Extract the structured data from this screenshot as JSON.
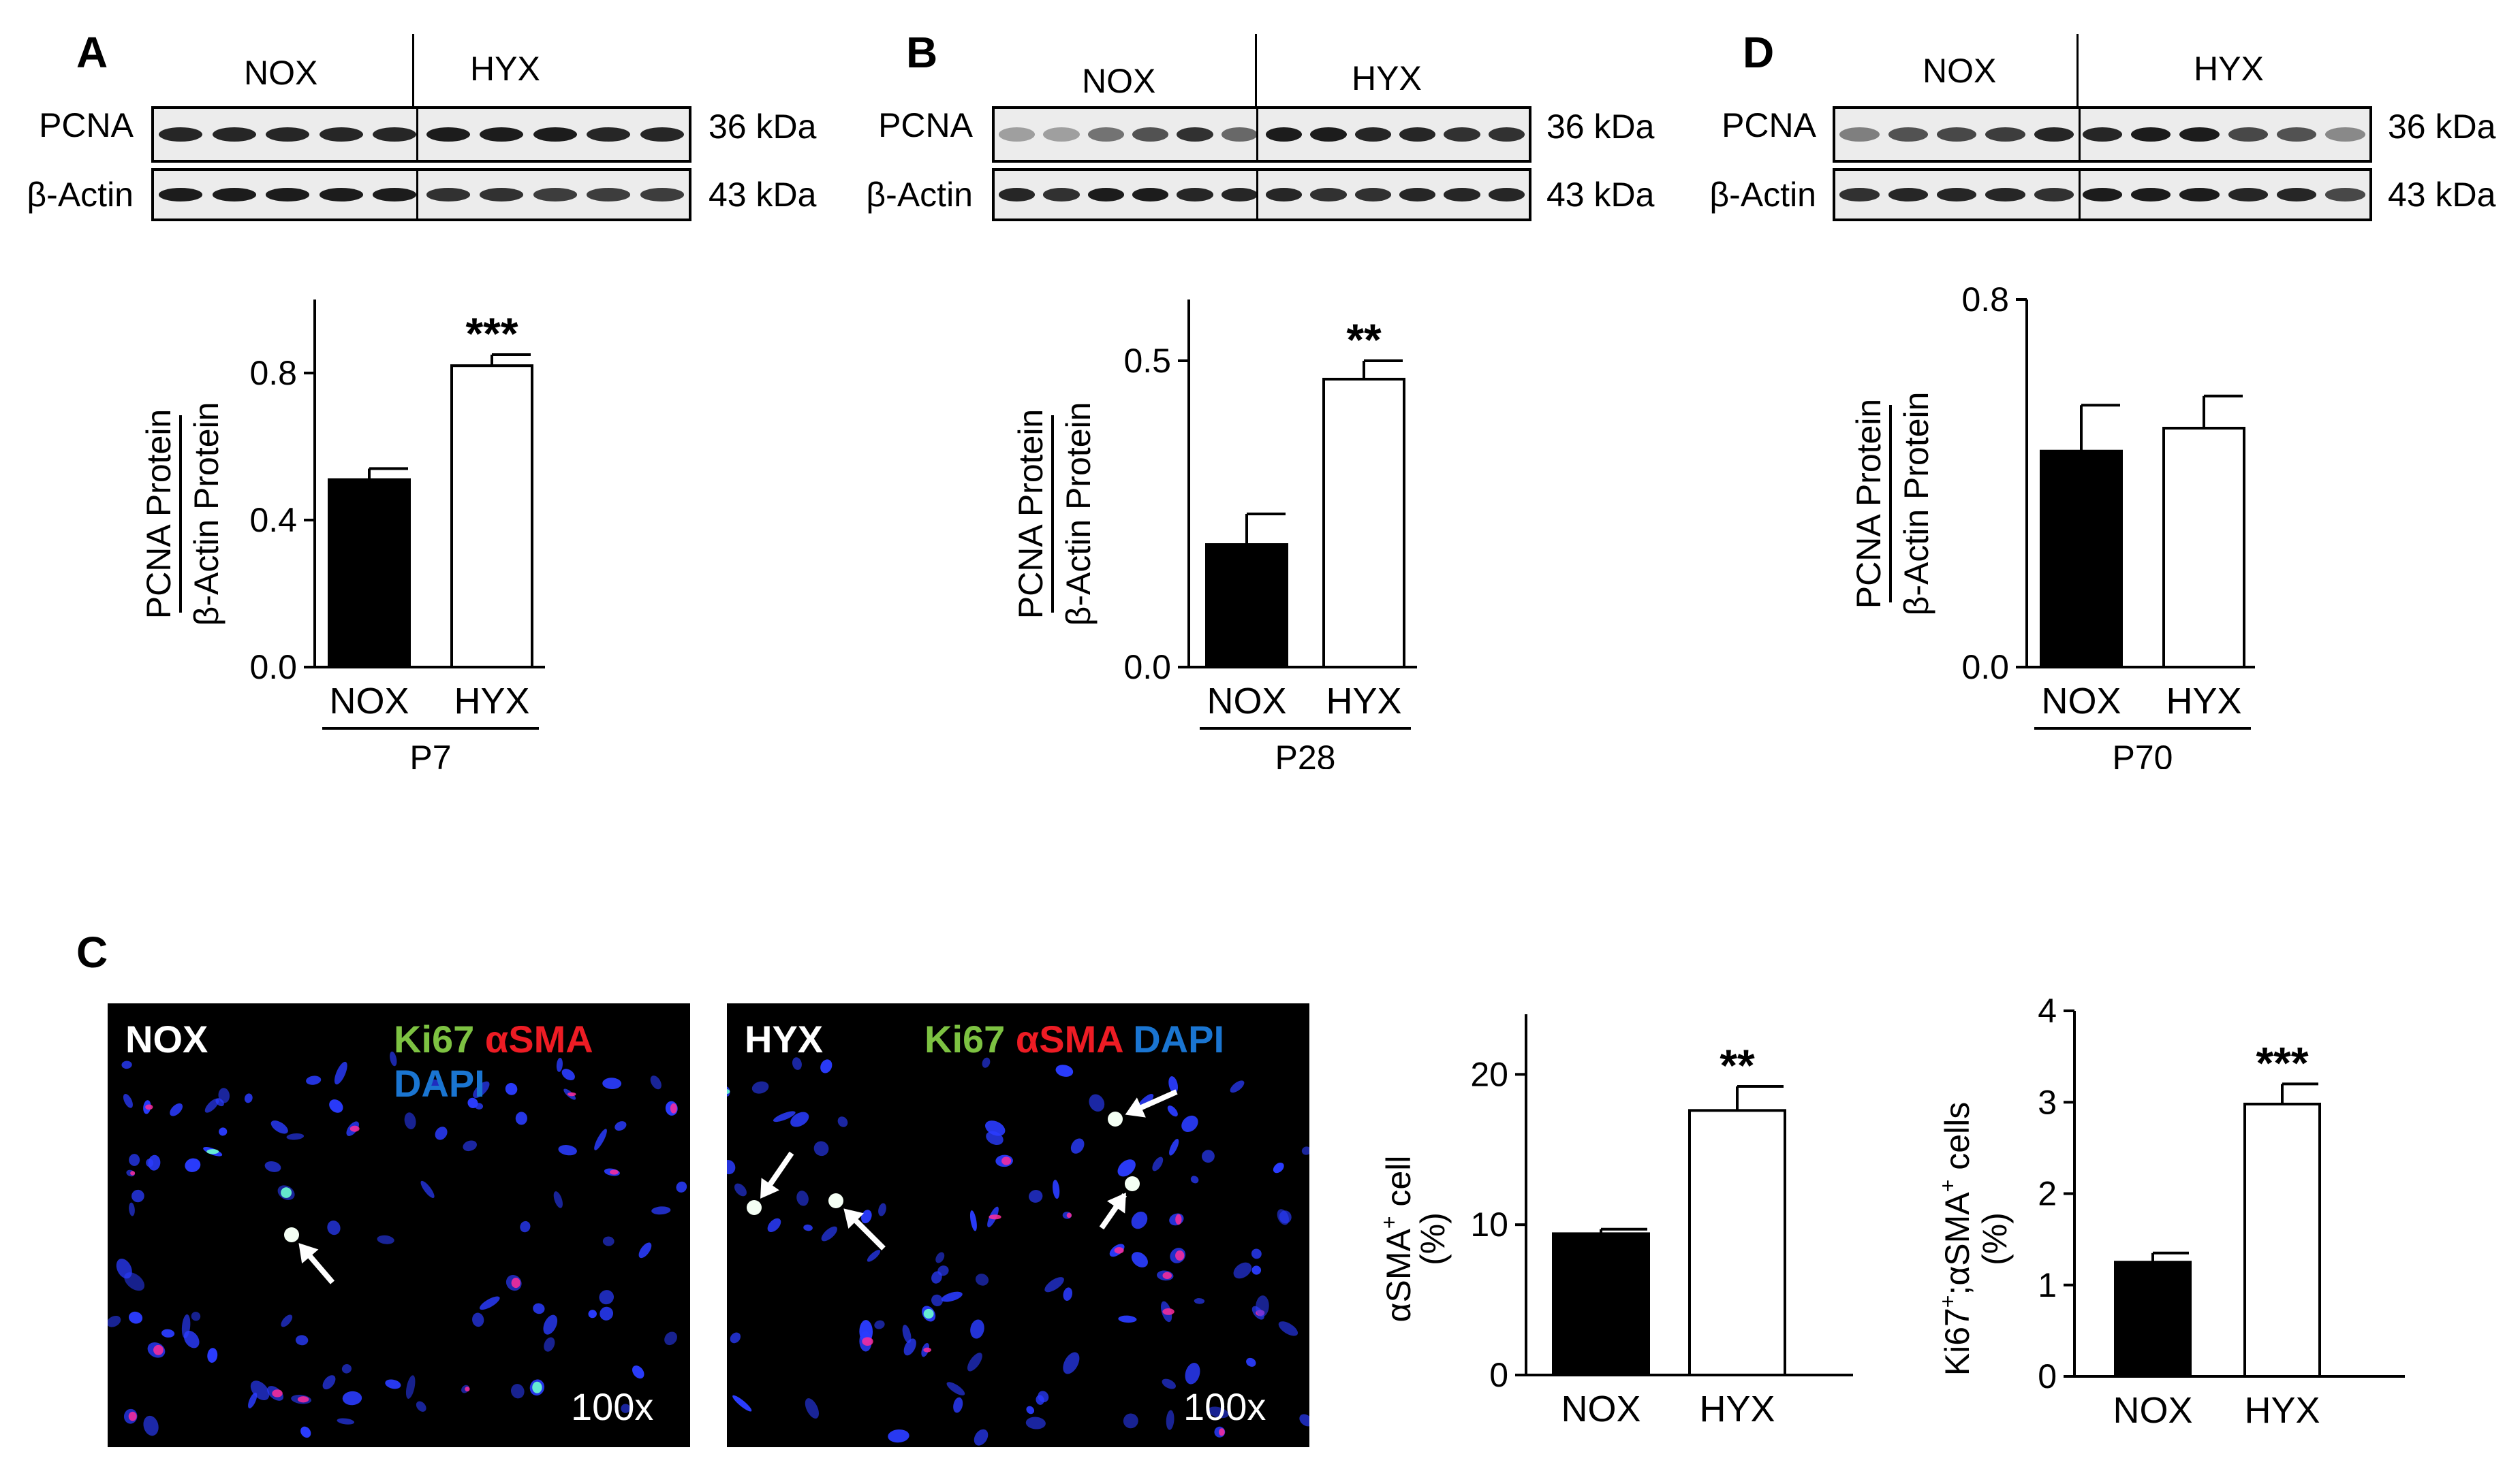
{
  "panels": {
    "A": {
      "letter": "A",
      "blot": {
        "groups": [
          "NOX",
          "HYX"
        ],
        "rows": [
          {
            "label": "PCNA",
            "kda": "36 kDa",
            "intensity": [
              0.9,
              0.9,
              0.9,
              0.9,
              0.9,
              0.95,
              0.95,
              0.95,
              0.9,
              0.9
            ]
          },
          {
            "label": "β-Actin",
            "kda": "43 kDa",
            "intensity": [
              0.95,
              0.95,
              0.95,
              0.95,
              0.95,
              0.85,
              0.85,
              0.8,
              0.8,
              0.8
            ]
          }
        ]
      },
      "chart": {
        "ylabel_top": "PCNA Protein",
        "ylabel_bottom": "β-Actin Protein",
        "categories": [
          "NOX",
          "HYX"
        ],
        "group": "P7",
        "values": [
          0.51,
          0.82
        ],
        "errors": [
          0.03,
          0.03
        ],
        "sig": [
          "",
          "***"
        ],
        "ylim": [
          0,
          1.0
        ],
        "ticks": [
          "0.0",
          "0.4",
          "0.8"
        ]
      }
    },
    "B": {
      "letter": "B",
      "blot": {
        "groups": [
          "NOX",
          "HYX"
        ],
        "rows": [
          {
            "label": "PCNA",
            "kda": "36 kDa",
            "intensity": [
              0.35,
              0.35,
              0.55,
              0.7,
              0.85,
              0.6,
              0.95,
              0.95,
              0.9,
              0.9,
              0.85,
              0.85
            ]
          },
          {
            "label": "β-Actin",
            "kda": "43 kDa",
            "intensity": [
              0.9,
              0.85,
              0.95,
              0.95,
              0.9,
              0.9,
              0.9,
              0.85,
              0.85,
              0.9,
              0.9,
              0.9
            ]
          }
        ]
      },
      "chart": {
        "ylabel_top": "PCNA Protein",
        "ylabel_bottom": "β-Actin Protein",
        "categories": [
          "NOX",
          "HYX"
        ],
        "group": "P28",
        "values": [
          0.2,
          0.47
        ],
        "errors": [
          0.05,
          0.03
        ],
        "sig": [
          "",
          "**"
        ],
        "ylim": [
          0,
          0.6
        ],
        "ticks": [
          "0.0",
          "0.5"
        ]
      }
    },
    "D": {
      "letter": "D",
      "blot": {
        "groups": [
          "NOX",
          "HYX"
        ],
        "rows": [
          {
            "label": "PCNA",
            "kda": "36 kDa",
            "intensity": [
              0.5,
              0.7,
              0.75,
              0.8,
              0.9,
              0.9,
              0.95,
              0.95,
              0.75,
              0.7,
              0.45
            ]
          },
          {
            "label": "β-Actin",
            "kda": "43 kDa",
            "intensity": [
              0.85,
              0.9,
              0.9,
              0.9,
              0.85,
              0.95,
              0.95,
              0.95,
              0.9,
              0.9,
              0.75
            ]
          }
        ]
      },
      "chart": {
        "ylabel_top": "PCNA Protein",
        "ylabel_bottom": "β-Actin Protein",
        "categories": [
          "NOX",
          "HYX"
        ],
        "group": "P70",
        "values": [
          0.47,
          0.52
        ],
        "errors": [
          0.1,
          0.07
        ],
        "sig": [
          "",
          ""
        ],
        "ylim": [
          0,
          0.8
        ],
        "ticks": [
          "0.0",
          "0.8"
        ]
      }
    },
    "C": {
      "letter": "C",
      "micrographs": [
        {
          "group": "NOX",
          "stain": [
            "Ki67",
            "αSMA",
            "DAPI"
          ],
          "mag": "100x"
        },
        {
          "group": "HYX",
          "stain": [
            "Ki67",
            "αSMA",
            "DAPI"
          ],
          "mag": "100x"
        }
      ],
      "stain_colors": {
        "Ki67": "#7dc242",
        "αSMA": "#ed1c24",
        "DAPI": "#1a75d1",
        "group": "#ffffff"
      },
      "chart1": {
        "ylabel_main": "αSMA",
        "ylabel_sup": "+",
        "ylabel_rest": " cell",
        "ylabel_unit": "(%)",
        "categories": [
          "NOX",
          "HYX"
        ],
        "values": [
          9.4,
          17.6
        ],
        "errors": [
          0.3,
          1.6
        ],
        "sig": [
          "",
          "**"
        ],
        "ylim": [
          0,
          24
        ],
        "ticks": [
          "0",
          "10",
          "20"
        ]
      },
      "chart2": {
        "ylabel_a": "Ki67",
        "ylabel_b": ";αSMA",
        "ylabel_c": " cells",
        "ylabel_sup": "+",
        "ylabel_unit": "(%)",
        "categories": [
          "NOX",
          "HYX"
        ],
        "values": [
          1.25,
          2.98
        ],
        "errors": [
          0.1,
          0.22
        ],
        "sig": [
          "",
          "***"
        ],
        "ylim": [
          0,
          4
        ],
        "ticks": [
          "0",
          "1",
          "2",
          "3",
          "4"
        ]
      }
    }
  }
}
